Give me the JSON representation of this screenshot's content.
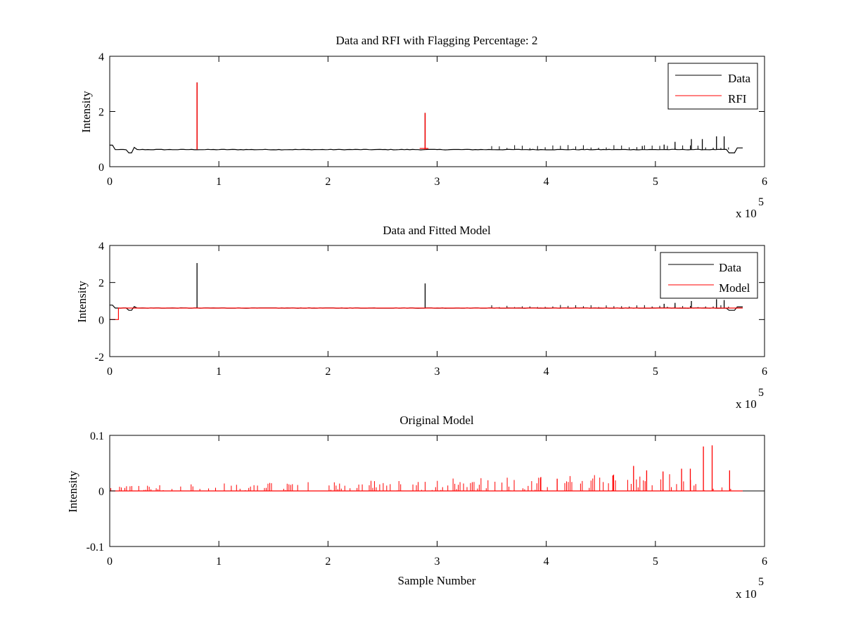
{
  "chart_data": [
    {
      "type": "line",
      "title": "Data and RFI with Flagging Percentage: 2",
      "xlabel": "",
      "ylabel": "Intensity",
      "xlim": [
        0,
        600000
      ],
      "ylim": [
        0,
        4
      ],
      "xticks": [
        0,
        1,
        2,
        3,
        4,
        5,
        6
      ],
      "yticks": [
        0,
        2,
        4
      ],
      "x_exponent": "x 10",
      "x_exponent_power": "5",
      "legend_position": "top-right",
      "series": [
        {
          "name": "Data",
          "color": "#000000",
          "baseline": 0.62,
          "spikes": [
            [
              80000,
              3.05
            ],
            [
              289000,
              1.95
            ],
            [
              488000,
              0.75
            ],
            [
              508000,
              0.8
            ],
            [
              518000,
              0.9
            ],
            [
              533000,
              1.0
            ],
            [
              543000,
              1.0
            ],
            [
              556000,
              1.1
            ],
            [
              563000,
              1.1
            ]
          ],
          "dips": [
            [
              2000,
              0.82
            ],
            [
              17000,
              0.48
            ],
            [
              23000,
              0.72
            ],
            [
              570000,
              0.48
            ]
          ]
        },
        {
          "name": "RFI",
          "color": "#ff0000",
          "spikes": [
            [
              80000,
              3.05
            ],
            [
              289000,
              1.95
            ]
          ]
        }
      ]
    },
    {
      "type": "line",
      "title": "Data and Fitted Model",
      "xlabel": "",
      "ylabel": "Intensity",
      "xlim": [
        0,
        600000
      ],
      "ylim": [
        -2,
        4
      ],
      "xticks": [
        0,
        1,
        2,
        3,
        4,
        5,
        6
      ],
      "yticks": [
        -2,
        0,
        2,
        4
      ],
      "x_exponent": "x 10",
      "x_exponent_power": "5",
      "legend_position": "top-right",
      "series": [
        {
          "name": "Data",
          "color": "#000000",
          "baseline": 0.62,
          "spikes": [
            [
              80000,
              3.05
            ],
            [
              289000,
              1.95
            ],
            [
              508000,
              0.85
            ],
            [
              518000,
              0.9
            ],
            [
              533000,
              1.0
            ],
            [
              556000,
              1.1
            ],
            [
              563000,
              1.05
            ]
          ],
          "dips": [
            [
              2000,
              0.82
            ],
            [
              17000,
              0.48
            ],
            [
              23000,
              0.72
            ],
            [
              570000,
              0.48
            ]
          ]
        },
        {
          "name": "Model",
          "color": "#ff0000",
          "baseline": 0.62,
          "start_value": 0.0,
          "start_until": 8000
        }
      ]
    },
    {
      "type": "line",
      "title": "Original Model",
      "xlabel": "Sample Number",
      "ylabel": "Intensity",
      "xlim": [
        0,
        600000
      ],
      "ylim": [
        -0.1,
        0.1
      ],
      "xticks": [
        0,
        1,
        2,
        3,
        4,
        5,
        6
      ],
      "yticks": [
        -0.1,
        0,
        0.1
      ],
      "ytick_labels": [
        "-0.1",
        "0",
        "0.1"
      ],
      "x_exponent": "x 10",
      "x_exponent_power": "5",
      "series": [
        {
          "name": "",
          "color": "#ff0000",
          "baseline": 0.0,
          "x_end": 580000,
          "peaks": [
            [
              544000,
              0.08
            ],
            [
              552000,
              0.082
            ],
            [
              532000,
              0.04
            ],
            [
              524000,
              0.04
            ],
            [
              507000,
              0.035
            ],
            [
              492000,
              0.037
            ],
            [
              568000,
              0.037
            ],
            [
              480000,
              0.045
            ],
            [
              461000,
              0.028
            ],
            [
              395000,
              0.025
            ],
            [
              410000,
              0.022
            ]
          ]
        }
      ]
    }
  ]
}
